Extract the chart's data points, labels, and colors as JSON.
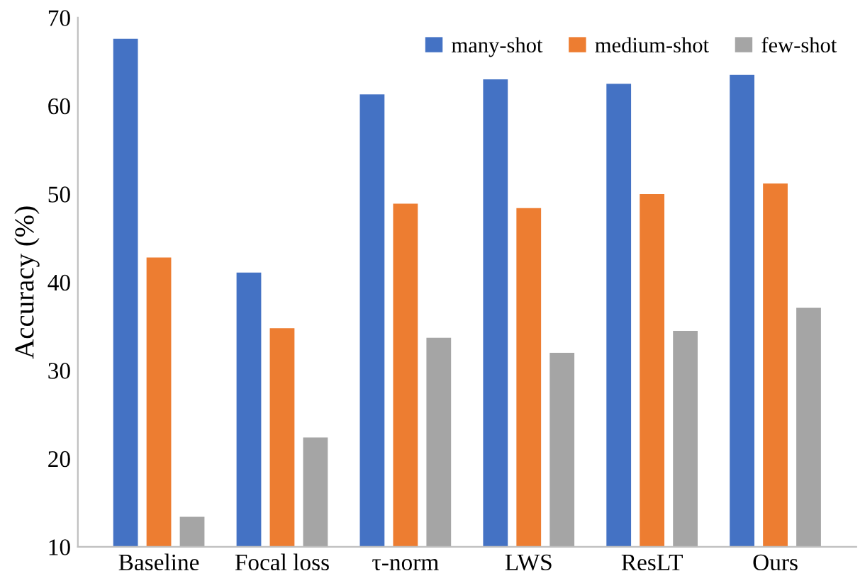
{
  "chart_data": {
    "type": "bar",
    "ylabel": "Accuracy (%)",
    "categories": [
      "Baseline",
      "Focal loss",
      "τ-norm",
      "LWS",
      "ResLT",
      "Ours"
    ],
    "series": [
      {
        "name": "many-shot",
        "color": "#4472c4",
        "values": [
          67.6,
          41.1,
          61.3,
          63.0,
          62.5,
          63.5
        ]
      },
      {
        "name": "medium-shot",
        "color": "#ed7d31",
        "values": [
          42.8,
          34.8,
          48.9,
          48.4,
          50.0,
          51.2
        ]
      },
      {
        "name": "few-shot",
        "color": "#a5a5a5",
        "values": [
          13.4,
          22.4,
          33.7,
          32.0,
          34.5,
          37.1
        ]
      }
    ],
    "ylim": [
      10,
      70
    ],
    "yticks": [
      10,
      20,
      30,
      40,
      50,
      60,
      70
    ],
    "grid": false,
    "legend": "top right"
  }
}
